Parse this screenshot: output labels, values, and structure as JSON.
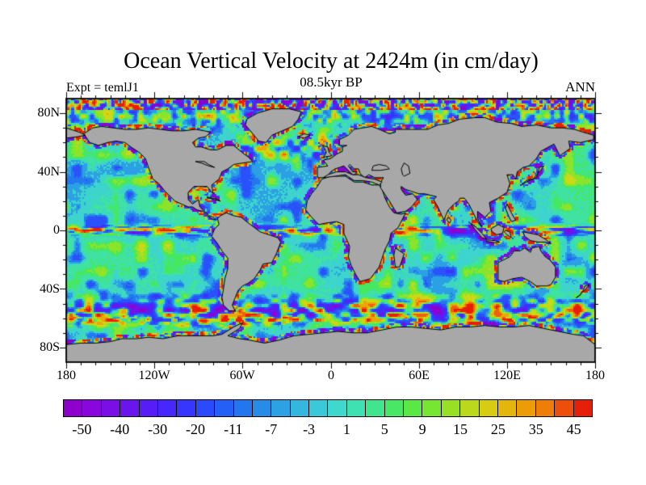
{
  "header": {
    "title": "Ocean Vertical Velocity at 2424m (in cm/day)",
    "subtitle": "08.5kyr BP",
    "experiment": "Expt = temlJ1",
    "season": "ANN"
  },
  "chart_data": {
    "type": "heatmap",
    "projection": "equirectangular",
    "title": "Ocean Vertical Velocity at 2424m (in cm/day)",
    "subtitle": "08.5kyr BP",
    "annotations": [
      "Expt = temlJ1",
      "ANN"
    ],
    "units": "cm/day",
    "lon_range": [
      -180,
      180
    ],
    "lat_range": [
      -90,
      90
    ],
    "x_tick_labels": [
      "180",
      "120W",
      "60W",
      "0",
      "60E",
      "120E",
      "180"
    ],
    "x_tick_lons": [
      -180,
      -120,
      -60,
      0,
      60,
      120,
      180
    ],
    "y_tick_labels": [
      "80N",
      "40N",
      "0",
      "40S",
      "80S"
    ],
    "y_tick_lats": [
      80,
      40,
      0,
      -40,
      -80
    ],
    "minor_tick_deg": 10,
    "grid": false,
    "legend_position": "bottom",
    "land_color": "#a8a8a8",
    "coastline_color": "#000000",
    "colorbar": {
      "labels": [
        "-50",
        "-40",
        "-30",
        "-20",
        "-11",
        "-7",
        "-3",
        "1",
        "5",
        "9",
        "15",
        "25",
        "35",
        "45"
      ],
      "levels": [
        -50,
        -40,
        -30,
        -20,
        -11,
        -7,
        -3,
        1,
        5,
        9,
        15,
        25,
        35,
        45
      ],
      "segment_colors": [
        "#8e00cc",
        "#8906dc",
        "#7b0de6",
        "#6a15ee",
        "#581df6",
        "#4628fc",
        "#3636ff",
        "#2b4afc",
        "#2560f6",
        "#2376ee",
        "#268ce8",
        "#2da2e2",
        "#35b6de",
        "#3bc8d8",
        "#3fd8cc",
        "#3fe0b2",
        "#40e58e",
        "#48e866",
        "#5ae844",
        "#76e632",
        "#98e026",
        "#bcd81c",
        "#d6cc12",
        "#e4b60c",
        "#eb9c06",
        "#ee7e08",
        "#ee4e0c",
        "#e62008"
      ],
      "band_colors": [
        "#8e00cc",
        "#7410e8",
        "#5520f8",
        "#3834ff",
        "#2a52fa",
        "#2378ee",
        "#2ba0e4",
        "#3cd4cc",
        "#3fe2a0",
        "#46e860",
        "#8ce42a",
        "#ccd816",
        "#e9a808",
        "#ee600c",
        "#e81e06"
      ]
    },
    "field_summary": {
      "background": "Open-ocean interior mostly between -3 and +5 cm/day (cyan/teal) with smooth green and blue patches",
      "equator": "Strong alternating zonal streaks of +/-20 to 50 cm/day along the equator, strongest red core in the eastern Pacific",
      "southern_ocean": "High-amplitude mixed positive (yellow/red) and negative (blue/purple) cells between 40S and 65S with a yellow band near 60S",
      "coastlines": "Narrow rims of extreme positive and negative values along most continental boundaries",
      "arctic": "High-frequency alternating extremes north of 82N"
    },
    "land_polygons": {
      "north_america": [
        -168,
        66,
        -164,
        60,
        -158,
        58,
        -152,
        60,
        -146,
        61,
        -140,
        60,
        -136,
        57,
        -130,
        53,
        -126,
        49,
        -124,
        43,
        -121,
        35,
        -117,
        32,
        -113,
        27,
        -109,
        23,
        -106,
        20,
        -97,
        16,
        -94,
        16,
        -91,
        14,
        -87,
        13,
        -84,
        10,
        -81,
        8,
        -78,
        7,
        -80,
        9,
        -83,
        10,
        -86,
        13,
        -89,
        16,
        -90,
        21,
        -94,
        18,
        -97,
        21,
        -97,
        26,
        -93,
        30,
        -89,
        30,
        -84,
        30,
        -81,
        26,
        -80,
        25,
        -81,
        31,
        -76,
        35,
        -74,
        40,
        -70,
        42,
        -66,
        45,
        -60,
        46,
        -53,
        47,
        -56,
        50,
        -60,
        53,
        -66,
        58,
        -71,
        58,
        -77,
        55,
        -82,
        55,
        -88,
        57,
        -92,
        57,
        -94,
        60,
        -90,
        63,
        -85,
        64,
        -82,
        67,
        -86,
        68,
        -92,
        69,
        -100,
        68,
        -108,
        68,
        -116,
        69,
        -124,
        70,
        -132,
        69,
        -140,
        69,
        -148,
        70,
        -156,
        71,
        -162,
        70
      ],
      "greenland": [
        -57,
        76,
        -50,
        80,
        -40,
        83,
        -28,
        83,
        -20,
        81,
        -22,
        76,
        -26,
        71,
        -33,
        68,
        -40,
        65,
        -44,
        60,
        -49,
        61,
        -53,
        66,
        -58,
        72
      ],
      "south_america": [
        -77,
        8,
        -76,
        4,
        -79,
        1,
        -81,
        -4,
        -77,
        -9,
        -74,
        -14,
        -70,
        -19,
        -70,
        -26,
        -72,
        -33,
        -73,
        -40,
        -74,
        -46,
        -73,
        -51,
        -69,
        -55,
        -65,
        -55,
        -67,
        -51,
        -65,
        -46,
        -63,
        -41,
        -60,
        -38,
        -56,
        -36,
        -52,
        -33,
        -48,
        -27,
        -46,
        -23,
        -40,
        -22,
        -37,
        -16,
        -34,
        -8,
        -36,
        -5,
        -42,
        -3,
        -48,
        -1,
        -52,
        2,
        -56,
        5,
        -61,
        9,
        -66,
        10,
        -71,
        12,
        -75,
        10
      ],
      "africa": [
        -6,
        35,
        0,
        37,
        10,
        37,
        16,
        33,
        22,
        33,
        28,
        31,
        33,
        31,
        35,
        28,
        37,
        22,
        40,
        16,
        43,
        12,
        48,
        11,
        51,
        12,
        46,
        2,
        41,
        -2,
        40,
        -7,
        37,
        -13,
        35,
        -19,
        33,
        -25,
        27,
        -33,
        20,
        -35,
        17,
        -30,
        14,
        -24,
        12,
        -18,
        13,
        -11,
        9,
        -2,
        9,
        4,
        4,
        6,
        -3,
        5,
        -8,
        4,
        -13,
        9,
        -17,
        14,
        -16,
        20,
        -13,
        25,
        -9,
        30
      ],
      "eurasia": [
        -9,
        36,
        -9,
        43,
        -2,
        44,
        -5,
        48,
        0,
        49,
        4,
        52,
        8,
        54,
        8,
        57,
        11,
        58,
        6,
        58,
        6,
        62,
        12,
        65,
        16,
        69,
        22,
        70,
        28,
        71,
        33,
        69,
        40,
        66,
        44,
        67,
        44,
        69,
        55,
        69,
        66,
        69,
        73,
        72,
        80,
        73,
        88,
        76,
        98,
        77,
        105,
        77,
        113,
        74,
        123,
        73,
        130,
        71,
        140,
        72,
        150,
        70,
        158,
        70,
        166,
        69,
        172,
        67,
        179,
        65,
        179,
        62,
        170,
        60,
        162,
        61,
        163,
        56,
        156,
        51,
        152,
        59,
        143,
        54,
        140,
        49,
        135,
        44,
        131,
        43,
        127,
        40,
        126,
        35,
        124,
        38,
        120,
        38,
        122,
        32,
        120,
        26,
        114,
        22,
        108,
        19,
        109,
        13,
        105,
        9,
        100,
        13,
        100,
        8,
        103,
        2,
        100,
        6,
        97,
        12,
        94,
        18,
        91,
        22,
        88,
        22,
        87,
        20,
        84,
        18,
        80,
        14,
        77,
        7,
        73,
        16,
        70,
        21,
        72,
        23,
        68,
        24,
        64,
        25,
        60,
        25,
        57,
        26,
        54,
        27,
        51,
        28,
        48,
        30,
        48,
        28,
        51,
        24,
        56,
        25,
        59,
        21,
        55,
        16,
        51,
        13,
        45,
        12,
        43,
        15,
        40,
        20,
        36,
        26,
        34,
        29,
        34,
        33,
        36,
        36,
        30,
        36,
        26,
        38,
        23,
        36,
        20,
        39,
        19,
        42,
        16,
        42,
        13,
        45,
        12,
        44,
        15,
        40,
        18,
        40,
        16,
        38,
        15,
        38,
        12,
        41,
        9,
        44,
        3,
        42,
        0,
        40,
        -2,
        37,
        -5,
        36
      ],
      "chukotka": [
        -180,
        70,
        -171,
        67,
        -167,
        65,
        -172,
        64,
        -180,
        63
      ],
      "australia": [
        114,
        -22,
        114,
        -34,
        118,
        -35,
        124,
        -33,
        130,
        -32,
        136,
        -35,
        140,
        -38,
        147,
        -38,
        150,
        -37,
        153,
        -32,
        153,
        -25,
        149,
        -20,
        146,
        -18,
        143,
        -14,
        142,
        -11,
        137,
        -12,
        136,
        -15,
        132,
        -12,
        129,
        -14,
        125,
        -14,
        122,
        -18
      ],
      "antarctica": [
        -180,
        -78,
        -170,
        -77,
        -160,
        -77,
        -150,
        -76,
        -142,
        -74,
        -132,
        -74,
        -124,
        -73,
        -114,
        -74,
        -104,
        -72,
        -96,
        -72,
        -88,
        -72,
        -80,
        -72,
        -74,
        -71,
        -66,
        -66,
        -60,
        -63,
        -62,
        -67,
        -70,
        -72,
        -62,
        -74,
        -55,
        -75,
        -45,
        -77,
        -35,
        -75,
        -25,
        -72,
        -15,
        -71,
        -5,
        -70,
        5,
        -69,
        15,
        -70,
        25,
        -70,
        35,
        -68,
        45,
        -66,
        55,
        -66,
        65,
        -67,
        75,
        -68,
        85,
        -66,
        95,
        -66,
        105,
        -65,
        115,
        -66,
        125,
        -66,
        135,
        -65,
        145,
        -67,
        155,
        -69,
        165,
        -71,
        172,
        -72,
        180,
        -78,
        180,
        -90,
        -180,
        -90
      ],
      "madagascar": [
        44,
        -12,
        50,
        -16,
        47,
        -25,
        44,
        -25,
        43,
        -17
      ],
      "borneo": [
        109,
        1,
        114,
        4,
        118,
        2,
        117,
        -2,
        113,
        -3,
        110,
        -1
      ],
      "sumatra": [
        95,
        5,
        99,
        2,
        103,
        -2,
        106,
        -6,
        103,
        -5,
        98,
        1
      ],
      "java": [
        106,
        -6.5,
        112,
        -7,
        115,
        -8,
        112,
        -8.5,
        106,
        -7.5
      ],
      "new_guinea": [
        131,
        -1,
        136,
        -2,
        141,
        -3,
        146,
        -6,
        150,
        -9,
        146,
        -8,
        141,
        -8,
        136,
        -7,
        132,
        -4
      ],
      "sulawesi": [
        119,
        0,
        122,
        -1,
        123,
        -5,
        120,
        -3,
        118,
        -1
      ],
      "philippines": [
        120,
        18,
        122,
        14,
        124,
        10,
        126,
        7,
        123,
        6,
        121,
        10,
        119,
        15
      ],
      "japan": [
        130,
        31,
        133,
        34,
        137,
        35,
        140,
        36,
        141,
        39,
        142,
        43,
        145,
        44,
        143,
        41,
        140,
        38,
        138,
        35,
        133,
        33
      ],
      "britain": [
        -5,
        50,
        -3,
        53,
        -4,
        56,
        -6,
        58,
        -2,
        57,
        -1,
        53,
        1,
        51
      ],
      "iceland": [
        -22,
        64,
        -18,
        66,
        -14,
        65,
        -18,
        63
      ],
      "new_zealand": [
        167,
        -46,
        170,
        -44,
        171,
        -42,
        173,
        -41,
        176,
        -37,
        173,
        -38,
        172,
        -41,
        169,
        -45
      ],
      "cuba": [
        -84,
        22,
        -79,
        22,
        -75,
        20,
        -79,
        21,
        -84,
        23
      ],
      "sri_lanka": [
        80,
        9,
        82,
        7,
        81,
        5,
        79,
        7
      ]
    },
    "inner_seas": {
      "mediterranean": [
        -5,
        36,
        3,
        37,
        10,
        38,
        16,
        34,
        22,
        34,
        28,
        33,
        33,
        31,
        35,
        33,
        30,
        35,
        24,
        36,
        19,
        38,
        15,
        38,
        10,
        40,
        4,
        40,
        -2,
        38
      ],
      "black_sea": [
        28,
        41,
        34,
        41,
        40,
        42,
        38,
        44,
        33,
        45,
        29,
        44
      ],
      "caspian_sea": [
        50,
        37,
        54,
        39,
        53,
        44,
        50,
        46,
        48,
        42,
        49,
        38
      ]
    },
    "lake_outlines": {
      "great_lakes": [
        -92,
        47,
        -86,
        47,
        -83,
        45,
        -79,
        43,
        -83,
        44,
        -88,
        46
      ]
    }
  }
}
